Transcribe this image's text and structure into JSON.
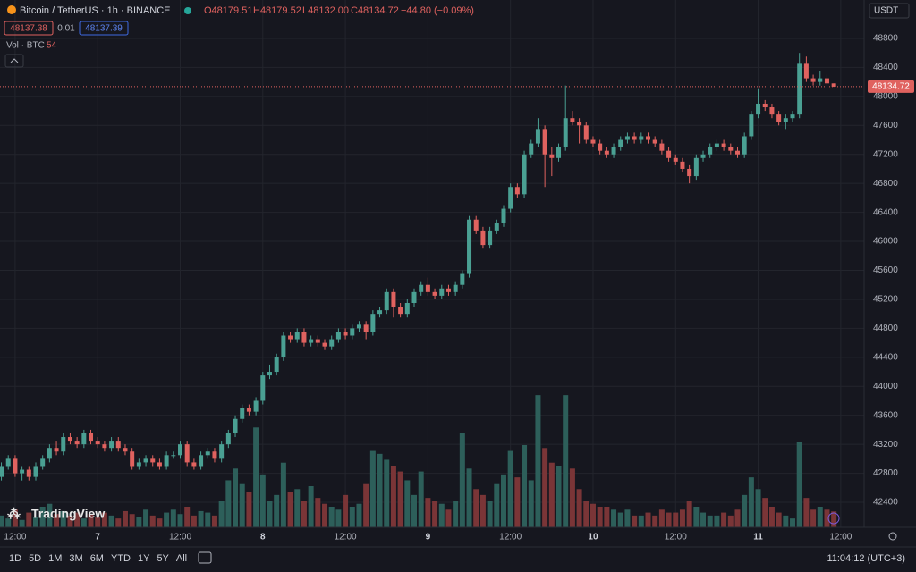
{
  "chart_data": {
    "type": "candlestick",
    "title": "Bitcoin / TetherUS · 1h · BINANCE",
    "legend": {
      "open": "O48179.51",
      "high": "H48179.52",
      "low": "L48132.00",
      "close": "C48134.72",
      "change": "−44.80 (−0.09%)",
      "bid": "48137.38",
      "spread": "0.01",
      "ask": "48137.39"
    },
    "volume_label": "Vol · BTC",
    "volume_value": "54",
    "currency": "USDT",
    "price_label": "48134.72",
    "brand": "TradingView",
    "toolbar": [
      "1D",
      "5D",
      "1M",
      "3M",
      "6M",
      "YTD",
      "1Y",
      "5Y",
      "All"
    ],
    "clock": "11:04:12 (UTC+3)",
    "up_color": "#4aa093",
    "down_color": "#e0625f",
    "volume_up_color": "#2d5f5a",
    "volume_down_color": "#7a3537",
    "ylim": [
      42055,
      49330
    ],
    "yticks": [
      42400,
      42800,
      43200,
      43600,
      44000,
      44400,
      44800,
      45200,
      45600,
      46000,
      46400,
      46800,
      47200,
      47600,
      48000,
      48400,
      48800
    ],
    "xlim": [
      -0.2,
      125.4
    ],
    "xticks": [
      {
        "value": 2,
        "label": "12:00"
      },
      {
        "value": 14,
        "label": "7"
      },
      {
        "value": 26,
        "label": "12:00"
      },
      {
        "value": 38,
        "label": "8"
      },
      {
        "value": 50,
        "label": "12:00"
      },
      {
        "value": 62,
        "label": "9"
      },
      {
        "value": 74,
        "label": "12:00"
      },
      {
        "value": 86,
        "label": "10"
      },
      {
        "value": 98,
        "label": "12:00"
      },
      {
        "value": 110,
        "label": "11"
      },
      {
        "value": 122,
        "label": "12:00"
      }
    ],
    "vlim": [
      0,
      700
    ],
    "open": [
      42750,
      42900,
      43000,
      42800,
      42850,
      42750,
      42900,
      43000,
      43150,
      43100,
      43300,
      43250,
      43200,
      43350,
      43250,
      43200,
      43150,
      43250,
      43150,
      43100,
      42900,
      42950,
      43000,
      42950,
      42900,
      43050,
      43050,
      43200,
      42950,
      42900,
      43050,
      43100,
      43000,
      43200,
      43350,
      43550,
      43700,
      43650,
      43800,
      44150,
      44200,
      44400,
      44700,
      44650,
      44750,
      44600,
      44650,
      44600,
      44550,
      44650,
      44750,
      44700,
      44800,
      44850,
      44750,
      45000,
      45050,
      45300,
      45100,
      45000,
      45150,
      45300,
      45400,
      45300,
      45250,
      45350,
      45300,
      45400,
      45550,
      46300,
      46150,
      45950,
      46150,
      46250,
      46450,
      46750,
      46650,
      47200,
      47350,
      47550,
      47200,
      47150,
      47300,
      47700,
      47650,
      47600,
      47400,
      47350,
      47250,
      47200,
      47300,
      47400,
      47450,
      47400,
      47450,
      47400,
      47350,
      47250,
      47150,
      47100,
      47000,
      46900,
      47150,
      47200,
      47300,
      47350,
      47300,
      47250,
      47200,
      47450,
      47750,
      47900,
      47850,
      47750,
      47650,
      47700,
      47750,
      48450,
      48250,
      48200,
      48250,
      48179.51
    ],
    "high": [
      42950,
      43050,
      43050,
      42900,
      42900,
      42950,
      43050,
      43200,
      43250,
      43350,
      43350,
      43300,
      43400,
      43400,
      43300,
      43250,
      43300,
      43300,
      43200,
      43150,
      43000,
      43050,
      43050,
      43000,
      43100,
      43100,
      43250,
      43250,
      43000,
      43100,
      43150,
      43150,
      43250,
      43400,
      43600,
      43750,
      43750,
      43850,
      44200,
      44300,
      44450,
      44750,
      44750,
      44800,
      44800,
      44700,
      44700,
      44650,
      44700,
      44800,
      44800,
      44850,
      44900,
      44900,
      45050,
      45100,
      45350,
      45350,
      45150,
      45200,
      45350,
      45450,
      45500,
      45350,
      45400,
      45400,
      45450,
      45600,
      46350,
      46350,
      46200,
      46200,
      46300,
      46500,
      46800,
      46800,
      47250,
      47400,
      47700,
      47600,
      47300,
      47350,
      48150,
      47800,
      47700,
      47650,
      47450,
      47400,
      47300,
      47350,
      47450,
      47500,
      47500,
      47500,
      47500,
      47450,
      47400,
      47300,
      47200,
      47150,
      47050,
      47200,
      47250,
      47350,
      47400,
      47400,
      47350,
      47300,
      47500,
      47800,
      48100,
      47950,
      47900,
      47800,
      47750,
      47800,
      48600,
      48550,
      48300,
      48350,
      48300,
      48179.52
    ],
    "low": [
      42700,
      42850,
      42750,
      42700,
      42700,
      42700,
      42850,
      42950,
      43050,
      43050,
      43200,
      43150,
      43150,
      43200,
      43150,
      43100,
      43100,
      43100,
      43050,
      42850,
      42850,
      42900,
      42900,
      42850,
      42850,
      43000,
      43000,
      42900,
      42850,
      42850,
      43000,
      42950,
      42950,
      43150,
      43300,
      43500,
      43600,
      43600,
      43750,
      44100,
      44150,
      44350,
      44600,
      44600,
      44550,
      44550,
      44550,
      44500,
      44500,
      44600,
      44650,
      44650,
      44750,
      44650,
      44700,
      44950,
      45000,
      44950,
      44950,
      44950,
      45100,
      45250,
      45250,
      45200,
      45200,
      45250,
      45250,
      45350,
      45500,
      46100,
      45900,
      45900,
      46100,
      46200,
      46400,
      46600,
      46600,
      47150,
      47300,
      46750,
      46900,
      47100,
      47250,
      47600,
      47350,
      47350,
      47300,
      47200,
      47150,
      47150,
      47250,
      47350,
      47350,
      47350,
      47350,
      47300,
      47200,
      47100,
      47050,
      46950,
      46800,
      46850,
      47100,
      47150,
      47250,
      47250,
      47200,
      47150,
      47150,
      47400,
      47700,
      47800,
      47700,
      47600,
      47550,
      47650,
      47700,
      48200,
      48150,
      48150,
      48150,
      48132.0
    ],
    "close": [
      42900,
      43000,
      42800,
      42850,
      42750,
      42900,
      43000,
      43150,
      43100,
      43300,
      43250,
      43200,
      43350,
      43250,
      43200,
      43150,
      43250,
      43150,
      43100,
      42900,
      42950,
      43000,
      42950,
      42900,
      43050,
      43050,
      43200,
      42950,
      42900,
      43050,
      43100,
      43000,
      43200,
      43350,
      43550,
      43700,
      43650,
      43800,
      44150,
      44200,
      44400,
      44700,
      44650,
      44750,
      44600,
      44650,
      44600,
      44550,
      44650,
      44750,
      44700,
      44800,
      44850,
      44750,
      45000,
      45050,
      45300,
      45100,
      45000,
      45150,
      45300,
      45400,
      45300,
      45250,
      45350,
      45300,
      45400,
      45550,
      46300,
      46150,
      45950,
      46150,
      46250,
      46450,
      46750,
      46650,
      47200,
      47350,
      47550,
      47200,
      47150,
      47300,
      47700,
      47650,
      47600,
      47400,
      47350,
      47250,
      47200,
      47300,
      47400,
      47450,
      47400,
      47450,
      47400,
      47350,
      47250,
      47150,
      47100,
      47000,
      46900,
      47150,
      47200,
      47300,
      47350,
      47300,
      47250,
      47200,
      47450,
      47750,
      47900,
      47850,
      47750,
      47650,
      47700,
      47750,
      48450,
      48250,
      48200,
      48250,
      48179.51,
      48134.72
    ],
    "volume": [
      40,
      30,
      60,
      25,
      50,
      35,
      70,
      80,
      45,
      55,
      40,
      50,
      30,
      45,
      35,
      50,
      40,
      30,
      55,
      45,
      35,
      60,
      40,
      30,
      50,
      60,
      45,
      70,
      40,
      55,
      50,
      40,
      90,
      160,
      200,
      150,
      120,
      340,
      180,
      90,
      110,
      220,
      120,
      130,
      90,
      140,
      100,
      80,
      70,
      60,
      110,
      70,
      80,
      150,
      260,
      250,
      230,
      210,
      190,
      160,
      110,
      190,
      100,
      90,
      80,
      60,
      90,
      320,
      200,
      130,
      110,
      90,
      150,
      180,
      260,
      170,
      280,
      160,
      450,
      270,
      220,
      210,
      450,
      200,
      130,
      90,
      80,
      70,
      70,
      60,
      50,
      60,
      40,
      40,
      50,
      40,
      60,
      50,
      50,
      60,
      90,
      70,
      50,
      40,
      40,
      50,
      40,
      60,
      110,
      170,
      130,
      100,
      70,
      50,
      40,
      30,
      290,
      100,
      60,
      70,
      60,
      54
    ]
  }
}
